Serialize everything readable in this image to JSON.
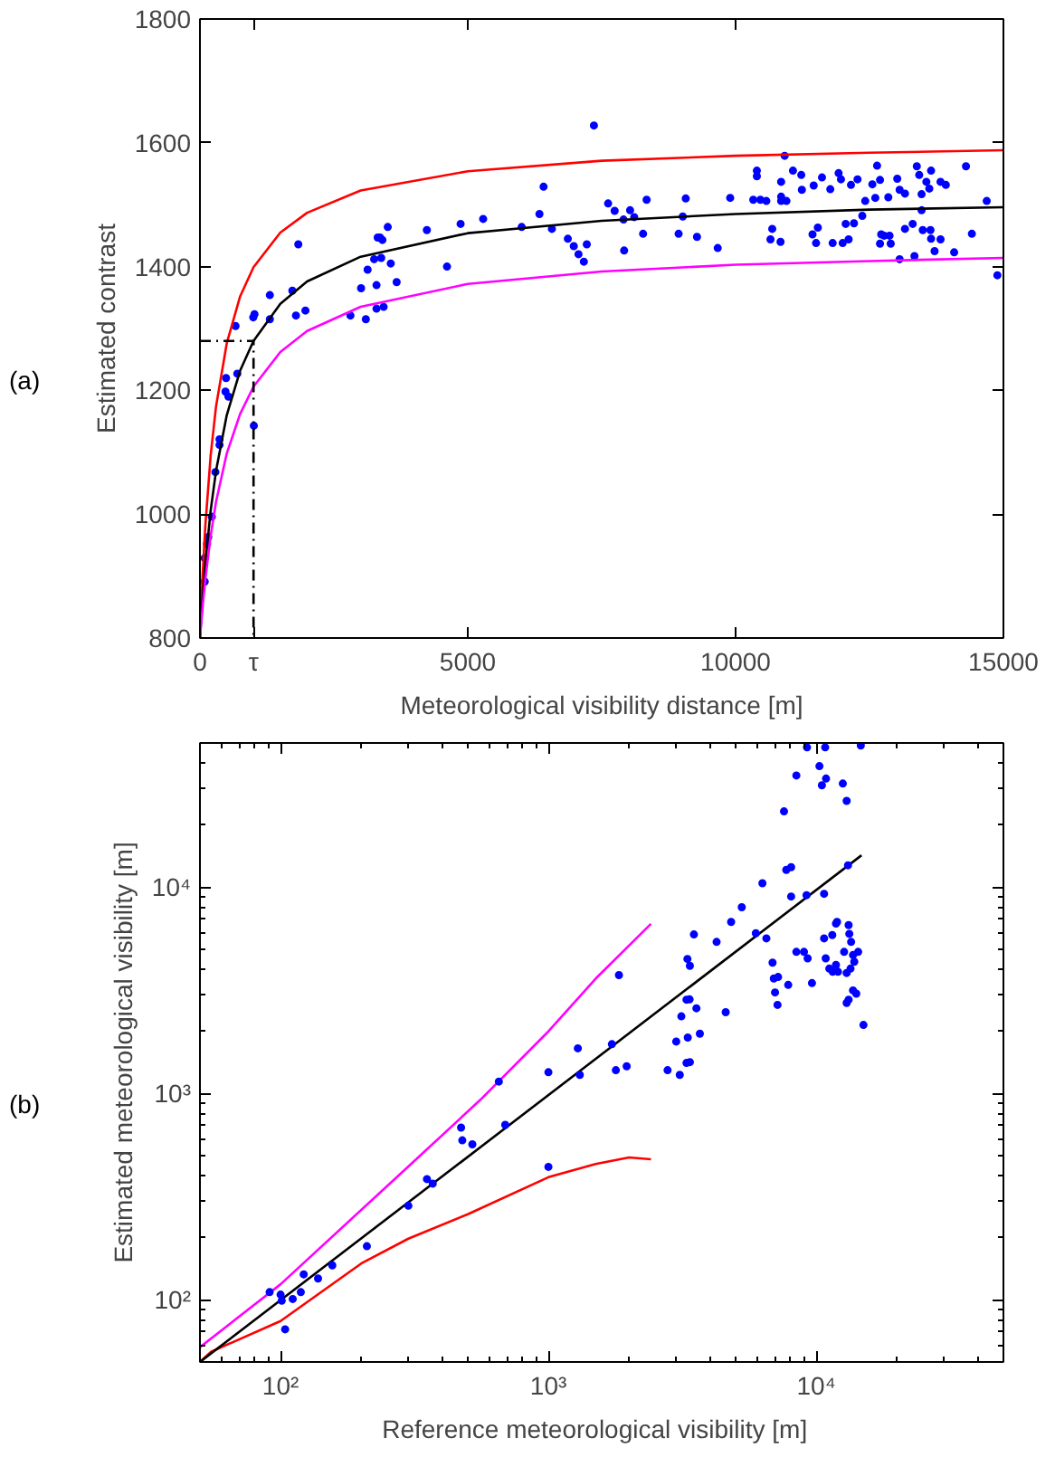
{
  "chart_data": [
    {
      "type": "scatter",
      "xlabel": "Meteorological visibility distance [m]",
      "ylabel": "Estimated contrast",
      "annotations": [
        "(a)"
      ],
      "xlim": [
        0,
        15000
      ],
      "xticks": [
        0,
        {
          "value": 1000,
          "label": "τ"
        },
        5000,
        10000,
        15000
      ],
      "ylim": [
        800,
        1800
      ],
      "yticks": [
        800,
        1000,
        1200,
        1400,
        1600,
        1800
      ],
      "grid": false,
      "series": [
        {
          "color": "#0000ff",
          "marker": "circle",
          "x": [
            88,
            88,
            133,
            155,
            221,
            288,
            365,
            365,
            476,
            487,
            531,
            664,
            697,
            995,
            1006,
            1018,
            1305,
            1305,
            1725,
            1792,
            1836,
            1969,
            2809,
            3008,
            3097,
            3130,
            3252,
            3296,
            3296,
            3318,
            3362,
            3384,
            3406,
            3429,
            3506,
            3562,
            3672,
            4236,
            4612,
            4866,
            5287,
            6006,
            6338,
            6415,
            6570,
            6868,
            6979,
            7067,
            7167,
            7222,
            7355,
            7620,
            7742,
            7908,
            7919,
            8030,
            8107,
            8273,
            8339,
            8936,
            9014,
            9069,
            9279,
            9666,
            9899,
            10330,
            10397,
            10397,
            10463,
            10574,
            10651,
            10684,
            10839,
            10850,
            10850,
            10850,
            10916,
            10949,
            11071,
            11226,
            11237,
            11436,
            11458,
            11502,
            11535,
            11613,
            11768,
            11812,
            11923,
            11967,
            11999,
            12055,
            12110,
            12154,
            12210,
            12276,
            12365,
            12420,
            12553,
            12608,
            12641,
            12696,
            12696,
            12718,
            12774,
            12851,
            12874,
            12896,
            13018,
            13062,
            13062,
            13162,
            13162,
            13306,
            13339,
            13383,
            13428,
            13472,
            13472,
            13494,
            13561,
            13616,
            13638,
            13649,
            13649,
            13715,
            13826,
            13826,
            13925,
            14080,
            14301,
            14411,
            14688,
            14887
          ],
          "values": [
            891,
            929,
            952,
            963,
            996,
            1068,
            1112,
            1121,
            1198,
            1220,
            1190,
            1304,
            1227,
            1318,
            1143,
            1323,
            1354,
            1315,
            1361,
            1321,
            1436,
            1329,
            1321,
            1365,
            1315,
            1395,
            1412,
            1370,
            1332,
            1447,
            1447,
            1414,
            1443,
            1335,
            1464,
            1405,
            1375,
            1459,
            1400,
            1469,
            1477,
            1464,
            1485,
            1529,
            1461,
            1445,
            1433,
            1420,
            1408,
            1436,
            1628,
            1502,
            1490,
            1476,
            1426,
            1491,
            1480,
            1453,
            1508,
            1453,
            1481,
            1510,
            1448,
            1430,
            1511,
            1508,
            1555,
            1546,
            1508,
            1506,
            1444,
            1461,
            1440,
            1537,
            1513,
            1506,
            1579,
            1506,
            1555,
            1548,
            1524,
            1452,
            1531,
            1438,
            1463,
            1544,
            1525,
            1438,
            1551,
            1541,
            1438,
            1469,
            1444,
            1532,
            1470,
            1541,
            1482,
            1506,
            1533,
            1511,
            1563,
            1540,
            1437,
            1452,
            1450,
            1512,
            1450,
            1437,
            1542,
            1524,
            1412,
            1461,
            1518,
            1469,
            1417,
            1562,
            1548,
            1517,
            1491,
            1459,
            1537,
            1526,
            1459,
            1555,
            1445,
            1425,
            1444,
            1537,
            1532,
            1423,
            1562,
            1453,
            1506,
            1386
          ]
        },
        {
          "type": "line",
          "color": "#ff0000",
          "x": [
            0,
            50,
            100,
            200,
            300,
            500,
            750,
            1000,
            1500,
            2000,
            3000,
            5000,
            7500,
            10000,
            12500,
            15000
          ],
          "values": [
            800,
            902,
            981,
            1095,
            1174,
            1276,
            1352,
            1399,
            1455,
            1487,
            1523,
            1554,
            1571,
            1579,
            1584,
            1588
          ]
        },
        {
          "type": "line",
          "color": "#000000",
          "x": [
            0,
            50,
            100,
            200,
            300,
            500,
            750,
            1000,
            1500,
            2000,
            3000,
            5000,
            7500,
            10000,
            12500,
            15000
          ],
          "values": [
            800,
            866,
            920,
            1006,
            1070,
            1160,
            1232,
            1280,
            1340,
            1376,
            1416,
            1454,
            1474,
            1485,
            1492,
            1496
          ]
        },
        {
          "type": "line",
          "color": "#ff00ff",
          "x": [
            0,
            50,
            100,
            200,
            300,
            500,
            750,
            1000,
            1500,
            2000,
            3000,
            5000,
            7500,
            10000,
            12500,
            15000
          ],
          "values": [
            800,
            851,
            895,
            965,
            1020,
            1098,
            1162,
            1206,
            1262,
            1296,
            1335,
            1372,
            1392,
            1403,
            1409,
            1414
          ]
        },
        {
          "type": "line",
          "color": "#000000",
          "line_style": "dashed",
          "x": [
            0,
            1000,
            1000
          ],
          "values": [
            1280,
            1280,
            800
          ]
        }
      ]
    },
    {
      "type": "scatter",
      "xlabel": "Reference meteorological visibility   [m]",
      "ylabel": "Estimated meteorological visibility [m]",
      "annotations": [
        "(b)"
      ],
      "log": "xy",
      "xlim": [
        50,
        50000
      ],
      "xticks": [
        {
          "value": 100,
          "label": "10²"
        },
        {
          "value": 1000,
          "label": "10³"
        },
        {
          "value": 10000,
          "label": "10⁴"
        }
      ],
      "ylim": [
        50,
        50000
      ],
      "yticks": [
        {
          "value": 100,
          "label": "10²"
        },
        {
          "value": 1000,
          "label": "10³"
        },
        {
          "value": 10000,
          "label": "10⁴"
        }
      ],
      "grid": false,
      "series": [
        {
          "type": "line",
          "color": "#ff00ff",
          "x": [
            50,
            100,
            300,
            556,
            1000,
            1500,
            2415
          ],
          "values": [
            59,
            119,
            443,
            930,
            2000,
            3600,
            6640
          ]
        },
        {
          "type": "line",
          "color": "#ff0000",
          "x": [
            50,
            55,
            100,
            200,
            300,
            500,
            1000,
            1500,
            2000,
            2415
          ],
          "values": [
            50,
            56,
            79,
            150,
            198,
            260,
            393,
            455,
            490,
            480
          ]
        },
        {
          "type": "line",
          "color": "#000000",
          "x": [
            50,
            14760
          ],
          "values": [
            50,
            14270
          ]
        },
        {
          "color": "#0000ff",
          "marker": "circle",
          "x": [
            91,
            100,
            101,
            104,
            111,
            119,
            122,
            138,
            156,
            210,
            300,
            352,
            370,
            472,
            477,
            520,
            653,
            690,
            1000,
            1000,
            1288,
            1310,
            1726,
            1786,
            1834,
            1960,
            2786,
            3001,
            3094,
            3136,
            3278,
            3278,
            3304,
            3314,
            3367,
            3375,
            3375,
            3494,
            3570,
            3677,
            4246,
            4592,
            4811,
            5272,
            5950,
            6296,
            6514,
            6870,
            6944,
            7018,
            7169,
            7205,
            7580,
            7730,
            7860,
            8060,
            8060,
            8430,
            8430,
            9000,
            9200,
            9240,
            9290,
            9640,
            10280,
            10500,
            10700,
            10700,
            10800,
            10850,
            10880,
            11190,
            11480,
            11520,
            11850,
            11850,
            11960,
            12060,
            12570,
            12710,
            12990,
            12990,
            12990,
            13140,
            13210,
            13210,
            13290,
            13430,
            13500,
            13720,
            13720,
            13870,
            14110,
            14340,
            14670,
            15010
          ],
          "values": [
            109,
            106,
            99,
            72,
            101,
            109,
            133,
            127,
            147,
            182,
            286,
            385,
            366,
            684,
            593,
            567,
            1143,
            705,
            441,
            1268,
            1656,
            1231,
            1734,
            1297,
            3750,
            1356,
            1297,
            1786,
            1231,
            2366,
            2851,
            1406,
            4490,
            1868,
            2859,
            4160,
            1420,
            5900,
            2589,
            1950,
            5430,
            2477,
            6790,
            8000,
            5985,
            10450,
            5650,
            4310,
            3610,
            3090,
            2690,
            3670,
            23300,
            12130,
            3360,
            12500,
            9010,
            34800,
            4860,
            4860,
            9150,
            47600,
            4520,
            3430,
            38600,
            31200,
            9290,
            5650,
            47600,
            4520,
            33600,
            4030,
            5860,
            3890,
            6660,
            4200,
            6790,
            3890,
            31800,
            4860,
            26200,
            3840,
            2750,
            12770,
            6550,
            2850,
            5940,
            4030,
            5430,
            4690,
            3160,
            4350,
            3050,
            4860,
            48600,
            2150
          ]
        }
      ]
    }
  ]
}
